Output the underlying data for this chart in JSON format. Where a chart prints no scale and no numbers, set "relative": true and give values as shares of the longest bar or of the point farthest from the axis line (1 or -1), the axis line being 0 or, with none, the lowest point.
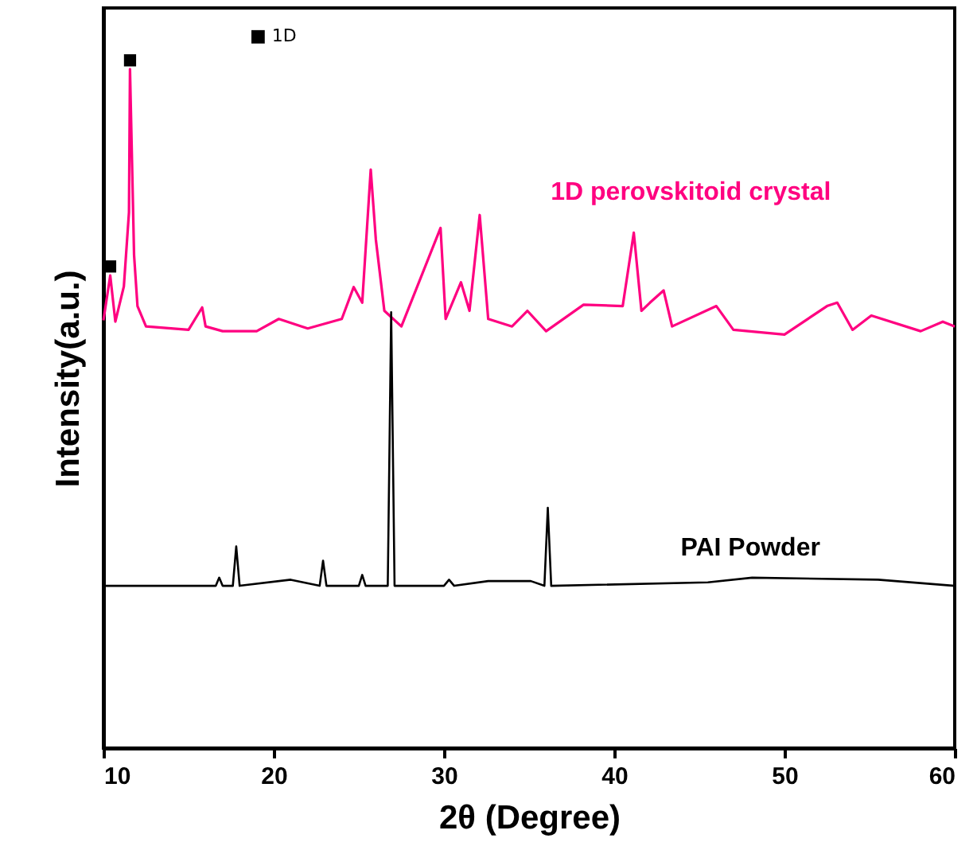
{
  "chart_data": {
    "type": "line",
    "relative": true,
    "xlabel": "2θ (Degree)",
    "ylabel": "Intensity(a.u.)",
    "xlim": [
      10,
      60
    ],
    "xticks": [
      10,
      20,
      30,
      40,
      50,
      60
    ],
    "grid": false,
    "marker": "none",
    "line_style": "solid",
    "series": [
      {
        "name": "1D perovskitoid crystal",
        "color": "#ff0080",
        "x": [
          10,
          10.4,
          10.7,
          11.2,
          11.5,
          11.56,
          11.8,
          12,
          12.5,
          15,
          15.8,
          16,
          17,
          19,
          20.3,
          22,
          24,
          24.7,
          25.2,
          25.7,
          26,
          26.5,
          27.5,
          29.8,
          30.1,
          31,
          31.5,
          32.1,
          32.6,
          34,
          34.9,
          36,
          38.2,
          40.5,
          41.15,
          41.6,
          42.1,
          42.9,
          43.4,
          46,
          47,
          50,
          52.5,
          53.1,
          54,
          55.1,
          58,
          59.3,
          60
        ],
        "values": [
          0.63,
          0.696,
          0.628,
          0.68,
          0.789,
          1.0,
          0.726,
          0.651,
          0.621,
          0.616,
          0.649,
          0.621,
          0.614,
          0.614,
          0.632,
          0.618,
          0.632,
          0.679,
          0.656,
          0.852,
          0.749,
          0.644,
          0.621,
          0.766,
          0.632,
          0.686,
          0.644,
          0.785,
          0.632,
          0.621,
          0.644,
          0.614,
          0.653,
          0.651,
          0.759,
          0.644,
          0.656,
          0.674,
          0.621,
          0.651,
          0.616,
          0.609,
          0.651,
          0.656,
          0.616,
          0.637,
          0.614,
          0.628,
          0.621
        ]
      },
      {
        "name": "PAI Powder",
        "color": "#000000",
        "x": [
          10,
          15,
          16.6,
          16.8,
          17,
          17.6,
          17.8,
          18,
          21,
          22.7,
          22.9,
          23.1,
          25,
          25.2,
          25.4,
          26.7,
          26.9,
          27.1,
          30,
          30.3,
          30.6,
          32.6,
          35.1,
          35.9,
          36.1,
          36.3,
          45.5,
          48.1,
          55.5,
          60
        ],
        "values": [
          0.239,
          0.239,
          0.239,
          0.251,
          0.239,
          0.239,
          0.297,
          0.239,
          0.248,
          0.239,
          0.276,
          0.239,
          0.239,
          0.255,
          0.239,
          0.239,
          0.642,
          0.239,
          0.239,
          0.248,
          0.239,
          0.246,
          0.246,
          0.239,
          0.354,
          0.239,
          0.244,
          0.251,
          0.248,
          0.239
        ]
      }
    ],
    "annotations": [
      {
        "text": "■",
        "x": 10.4,
        "y": 0.696
      },
      {
        "text": "■",
        "x": 11.56,
        "y": 1.0
      },
      "■ 1D"
    ]
  }
}
